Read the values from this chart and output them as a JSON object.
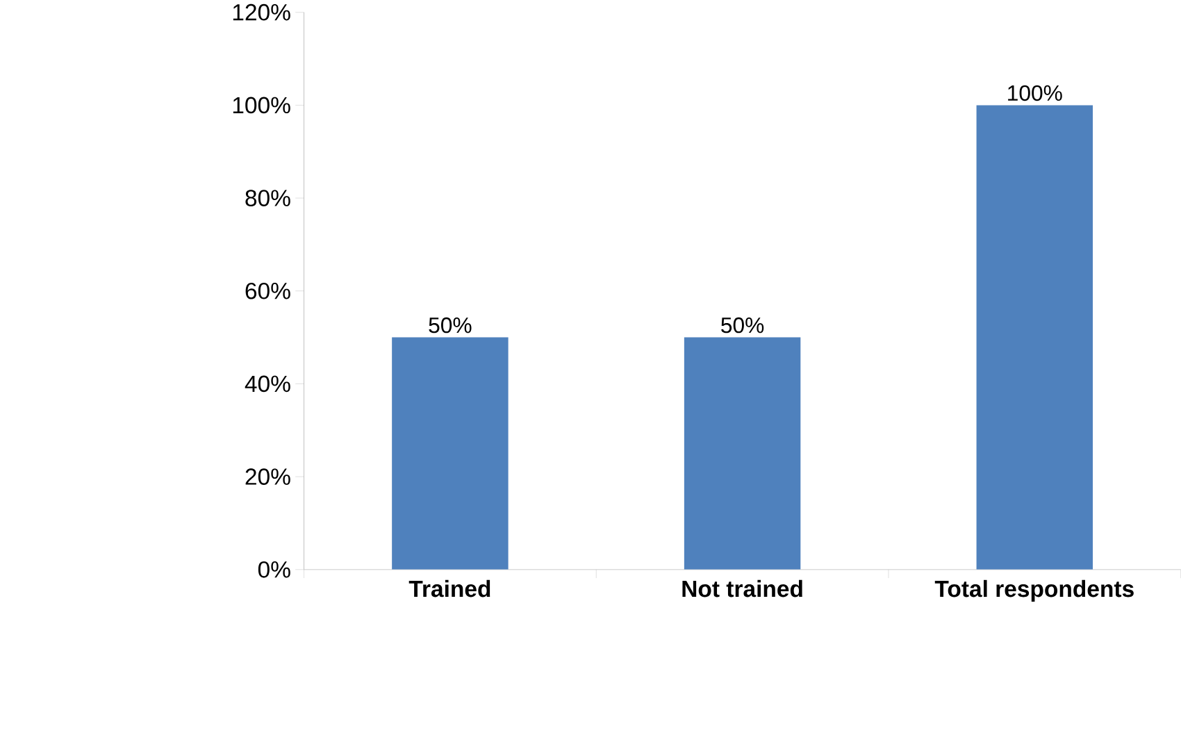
{
  "chart_data": {
    "type": "bar",
    "categories": [
      "Trained",
      "Not trained",
      "Total respondents"
    ],
    "values": [
      50,
      50,
      100
    ],
    "color": "#4f81bd",
    "value_labels": [
      "50%",
      "50%",
      "100%"
    ],
    "ylim": [
      0,
      120
    ],
    "yticks": [
      {
        "value": 0,
        "label": "0%"
      },
      {
        "value": 20,
        "label": "20%"
      },
      {
        "value": 40,
        "label": "40%"
      },
      {
        "value": 60,
        "label": "60%"
      },
      {
        "value": 80,
        "label": "80%"
      },
      {
        "value": 100,
        "label": "100%"
      },
      {
        "value": 120,
        "label": "120%"
      }
    ],
    "grid": false
  }
}
